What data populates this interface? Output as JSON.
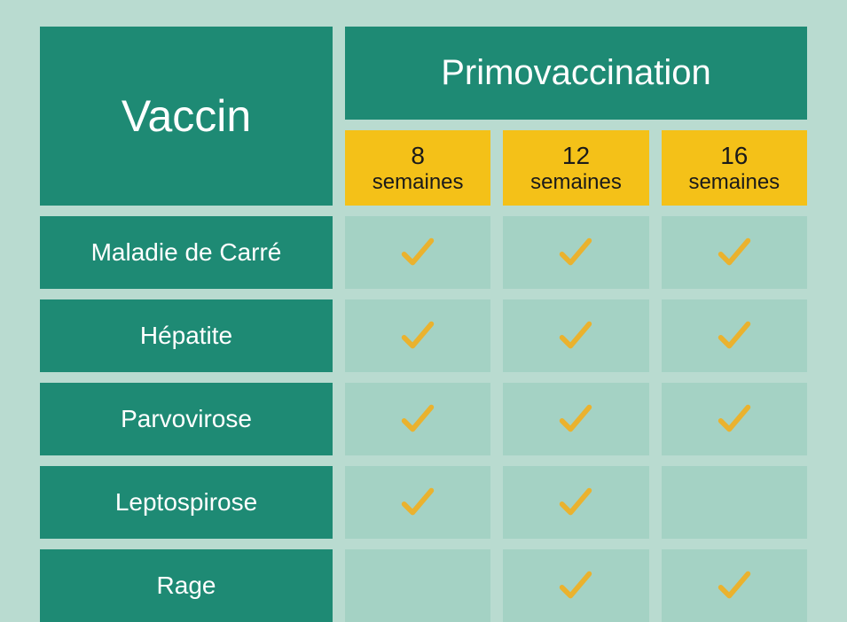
{
  "colors": {
    "page_bg": "#b9dbd0",
    "header_bg": "#1e8a74",
    "header_text": "#ffffff",
    "week_bg": "#f4c118",
    "week_text": "#1a1a1a",
    "cell_bg": "#a4d2c4",
    "check_color": "#eab22e"
  },
  "typography": {
    "vaccin_fontsize": 50,
    "primo_fontsize": 40,
    "week_num_fontsize": 28,
    "week_label_fontsize": 24,
    "row_label_fontsize": 28
  },
  "headers": {
    "vaccin": "Vaccin",
    "primo": "Primovaccination"
  },
  "columns": [
    {
      "num": "8",
      "unit": "semaines"
    },
    {
      "num": "12",
      "unit": "semaines"
    },
    {
      "num": "16",
      "unit": "semaines"
    }
  ],
  "rows": [
    {
      "label": "Maladie de Carré",
      "checks": [
        true,
        true,
        true
      ]
    },
    {
      "label": "Hépatite",
      "checks": [
        true,
        true,
        true
      ]
    },
    {
      "label": "Parvovirose",
      "checks": [
        true,
        true,
        true
      ]
    },
    {
      "label": "Leptospirose",
      "checks": [
        true,
        true,
        false
      ]
    },
    {
      "label": "Rage",
      "checks": [
        false,
        true,
        true
      ]
    }
  ]
}
